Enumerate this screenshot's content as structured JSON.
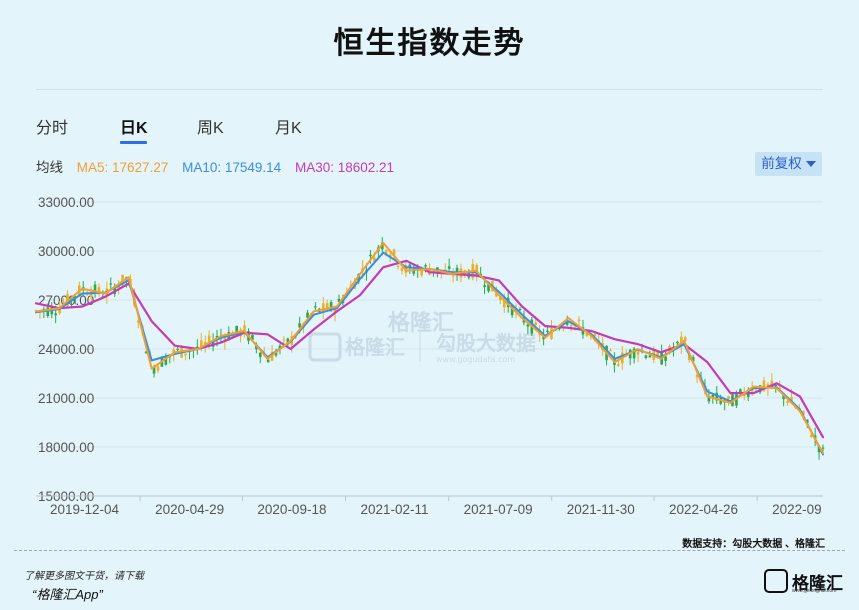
{
  "title": "恒生指数走势",
  "tabs": [
    {
      "label": "分时",
      "active": false
    },
    {
      "label": "日K",
      "active": true
    },
    {
      "label": "周K",
      "active": false
    },
    {
      "label": "月K",
      "active": false
    }
  ],
  "ma": {
    "label": "均线",
    "ma5": "MA5: 17627.27",
    "ma10": "MA10: 17549.14",
    "ma30": "MA30: 18602.21"
  },
  "adjust_button": "前复权",
  "watermark": {
    "left": "格隆汇",
    "right": "勾股大数据",
    "right_url": "www.gogudata.com"
  },
  "source_note": "数据支持：勾股大数据 、格隆汇",
  "footer": {
    "line1": "了解更多图文干货，请下载",
    "line2": "“格隆汇App”"
  },
  "logo": {
    "text": "格隆汇",
    "sub": "www.gelonghui.com"
  },
  "colors": {
    "ma5": "#f0a030",
    "ma10": "#3a8ee0",
    "ma30": "#c43bb5",
    "candle_up": "#e9b124",
    "candle_down": "#2aa84a",
    "grid": "#d2e5ee",
    "axis_text": "#555555"
  },
  "chart_data": {
    "type": "line",
    "title": "恒生指数走势",
    "xlabel": "",
    "ylabel": "",
    "ylim": [
      15000,
      33000
    ],
    "y_ticks": [
      "33000.00",
      "30000.00",
      "27000.00",
      "24000.00",
      "21000.00",
      "18000.00",
      "15000.00"
    ],
    "x_ticks": [
      "2019-12-04",
      "2020-04-29",
      "2020-09-18",
      "2021-02-11",
      "2021-07-09",
      "2021-11-30",
      "2022-04-26",
      "2022-09"
    ],
    "grid": true,
    "x": [
      "2019-11",
      "2019-12",
      "2020-01",
      "2020-02",
      "2020-03",
      "2020-04",
      "2020-05",
      "2020-06",
      "2020-07",
      "2020-08",
      "2020-09",
      "2020-10",
      "2020-11",
      "2020-12",
      "2021-01",
      "2021-02",
      "2021-03",
      "2021-04",
      "2021-05",
      "2021-06",
      "2021-07",
      "2021-08",
      "2021-09",
      "2021-10",
      "2021-11",
      "2021-12",
      "2022-01",
      "2022-02",
      "2022-03",
      "2022-04",
      "2022-05",
      "2022-06",
      "2022-07",
      "2022-08",
      "2022-09"
    ],
    "series": [
      {
        "name": "MA5",
        "values": [
          26300,
          26500,
          27700,
          27400,
          28400,
          22800,
          23800,
          24000,
          24800,
          25100,
          23400,
          24500,
          26300,
          26600,
          28600,
          30500,
          28800,
          28900,
          28600,
          28800,
          27300,
          25900,
          24700,
          25900,
          24800,
          23200,
          24000,
          23400,
          24500,
          21100,
          20700,
          21700,
          21600,
          20200,
          17627.27
        ]
      },
      {
        "name": "MA10",
        "values": [
          26250,
          26450,
          27400,
          27450,
          28200,
          23300,
          23700,
          24000,
          24700,
          25050,
          23500,
          24450,
          26100,
          26500,
          28300,
          29900,
          29000,
          28900,
          28700,
          28700,
          27500,
          26100,
          24800,
          25700,
          24900,
          23400,
          23950,
          23500,
          24300,
          21400,
          20800,
          21600,
          21650,
          20300,
          17549.14
        ]
      },
      {
        "name": "MA30",
        "values": [
          26800,
          26500,
          26600,
          27200,
          28000,
          25700,
          24200,
          24000,
          24400,
          25000,
          24900,
          24000,
          25200,
          26300,
          27300,
          29000,
          29400,
          28700,
          28600,
          28500,
          28200,
          26600,
          25400,
          25300,
          25100,
          24600,
          24300,
          23800,
          24300,
          23200,
          21300,
          21300,
          21900,
          21100,
          18602.21
        ]
      }
    ]
  }
}
